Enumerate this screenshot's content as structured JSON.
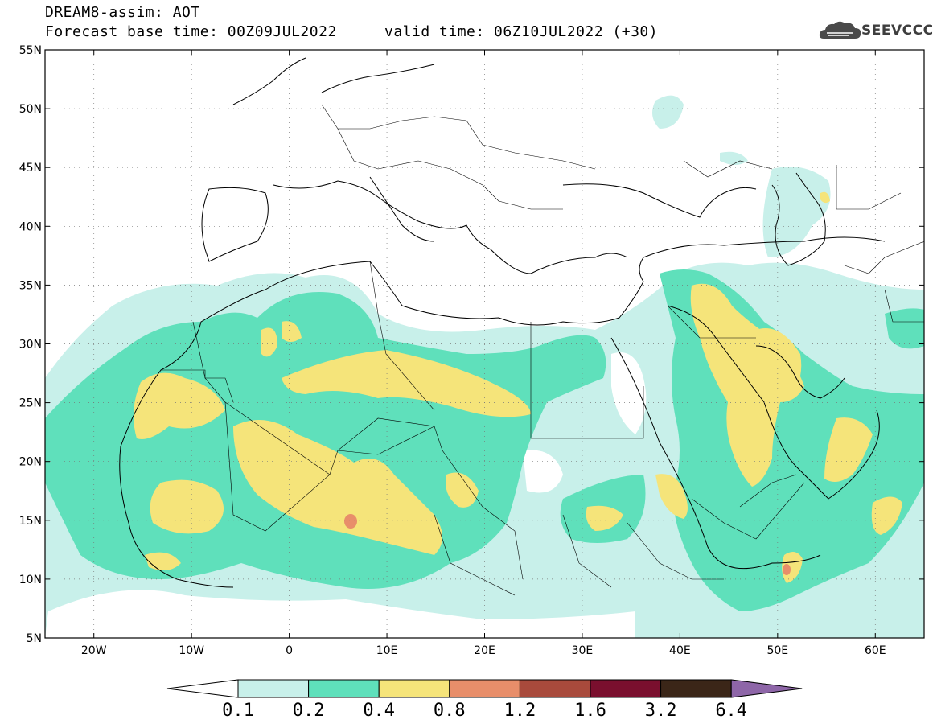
{
  "header": {
    "title_line1": "DREAM8-assim: AOT",
    "title_line2": "Forecast base time: 00Z09JUL2022",
    "valid_time": "valid time: 06Z10JUL2022 (+30)",
    "logo_text": "SEEVCCC"
  },
  "map": {
    "lon_range": [
      -25,
      65
    ],
    "lat_range": [
      5,
      55
    ],
    "lat_ticks": [
      "5N",
      "10N",
      "15N",
      "20N",
      "25N",
      "30N",
      "35N",
      "40N",
      "45N",
      "50N",
      "55N"
    ],
    "lon_ticks": [
      "20W",
      "10W",
      "0",
      "10E",
      "20E",
      "30E",
      "40E",
      "50E",
      "60E"
    ],
    "gridlines": "dotted"
  },
  "colorbar": {
    "labels": [
      "0.1",
      "0.2",
      "0.4",
      "0.8",
      "1.2",
      "1.6",
      "3.2",
      "6.4"
    ],
    "colors": [
      "#c8f0ea",
      "#5fe0bb",
      "#f5e47a",
      "#e88e6a",
      "#a84a3c",
      "#7a0f2e",
      "#3b2618",
      "#8e66a8"
    ],
    "extend_low_color": "#ffffff"
  }
}
